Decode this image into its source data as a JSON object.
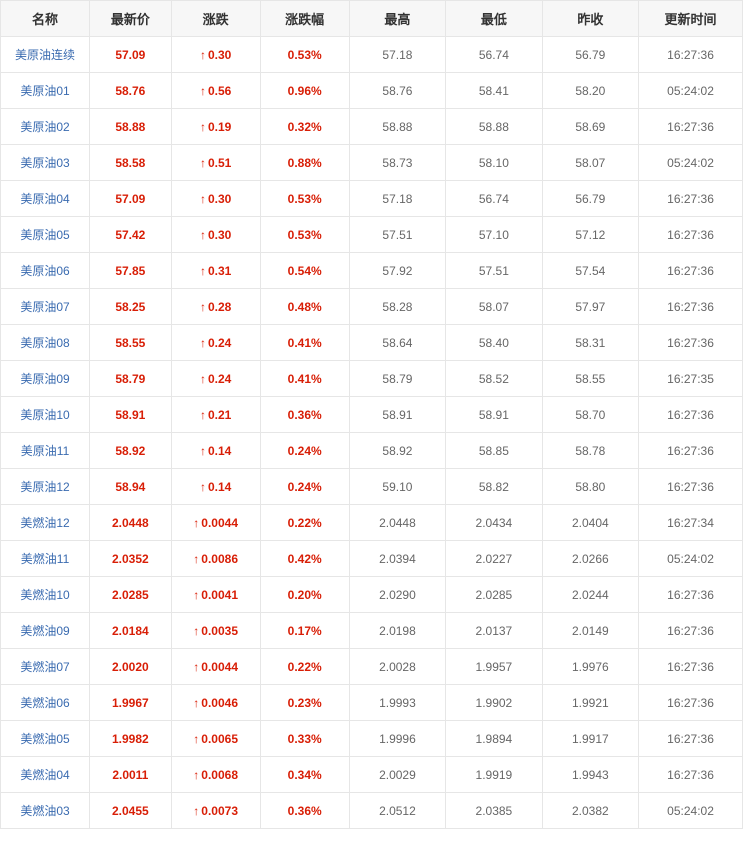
{
  "table": {
    "columns": [
      {
        "key": "name",
        "label": "名称"
      },
      {
        "key": "price",
        "label": "最新价"
      },
      {
        "key": "change",
        "label": "涨跌"
      },
      {
        "key": "pct",
        "label": "涨跌幅"
      },
      {
        "key": "high",
        "label": "最高"
      },
      {
        "key": "low",
        "label": "最低"
      },
      {
        "key": "prev",
        "label": "昨收"
      },
      {
        "key": "time",
        "label": "更新时间"
      }
    ],
    "up_arrow": "↑",
    "colors": {
      "header_bg": "#f7f7f7",
      "header_text": "#333333",
      "border": "#e6e6e6",
      "link": "#3a6bb0",
      "up": "#d81e06",
      "text": "#666666",
      "bg": "#ffffff"
    },
    "rows": [
      {
        "name": "美原油连续",
        "price": "57.09",
        "change": "0.30",
        "pct": "0.53%",
        "high": "57.18",
        "low": "56.74",
        "prev": "56.79",
        "time": "16:27:36",
        "dir": "up"
      },
      {
        "name": "美原油01",
        "price": "58.76",
        "change": "0.56",
        "pct": "0.96%",
        "high": "58.76",
        "low": "58.41",
        "prev": "58.20",
        "time": "05:24:02",
        "dir": "up"
      },
      {
        "name": "美原油02",
        "price": "58.88",
        "change": "0.19",
        "pct": "0.32%",
        "high": "58.88",
        "low": "58.88",
        "prev": "58.69",
        "time": "16:27:36",
        "dir": "up"
      },
      {
        "name": "美原油03",
        "price": "58.58",
        "change": "0.51",
        "pct": "0.88%",
        "high": "58.73",
        "low": "58.10",
        "prev": "58.07",
        "time": "05:24:02",
        "dir": "up"
      },
      {
        "name": "美原油04",
        "price": "57.09",
        "change": "0.30",
        "pct": "0.53%",
        "high": "57.18",
        "low": "56.74",
        "prev": "56.79",
        "time": "16:27:36",
        "dir": "up"
      },
      {
        "name": "美原油05",
        "price": "57.42",
        "change": "0.30",
        "pct": "0.53%",
        "high": "57.51",
        "low": "57.10",
        "prev": "57.12",
        "time": "16:27:36",
        "dir": "up"
      },
      {
        "name": "美原油06",
        "price": "57.85",
        "change": "0.31",
        "pct": "0.54%",
        "high": "57.92",
        "low": "57.51",
        "prev": "57.54",
        "time": "16:27:36",
        "dir": "up"
      },
      {
        "name": "美原油07",
        "price": "58.25",
        "change": "0.28",
        "pct": "0.48%",
        "high": "58.28",
        "low": "58.07",
        "prev": "57.97",
        "time": "16:27:36",
        "dir": "up"
      },
      {
        "name": "美原油08",
        "price": "58.55",
        "change": "0.24",
        "pct": "0.41%",
        "high": "58.64",
        "low": "58.40",
        "prev": "58.31",
        "time": "16:27:36",
        "dir": "up"
      },
      {
        "name": "美原油09",
        "price": "58.79",
        "change": "0.24",
        "pct": "0.41%",
        "high": "58.79",
        "low": "58.52",
        "prev": "58.55",
        "time": "16:27:35",
        "dir": "up"
      },
      {
        "name": "美原油10",
        "price": "58.91",
        "change": "0.21",
        "pct": "0.36%",
        "high": "58.91",
        "low": "58.91",
        "prev": "58.70",
        "time": "16:27:36",
        "dir": "up"
      },
      {
        "name": "美原油11",
        "price": "58.92",
        "change": "0.14",
        "pct": "0.24%",
        "high": "58.92",
        "low": "58.85",
        "prev": "58.78",
        "time": "16:27:36",
        "dir": "up"
      },
      {
        "name": "美原油12",
        "price": "58.94",
        "change": "0.14",
        "pct": "0.24%",
        "high": "59.10",
        "low": "58.82",
        "prev": "58.80",
        "time": "16:27:36",
        "dir": "up"
      },
      {
        "name": "美燃油12",
        "price": "2.0448",
        "change": "0.0044",
        "pct": "0.22%",
        "high": "2.0448",
        "low": "2.0434",
        "prev": "2.0404",
        "time": "16:27:34",
        "dir": "up"
      },
      {
        "name": "美燃油11",
        "price": "2.0352",
        "change": "0.0086",
        "pct": "0.42%",
        "high": "2.0394",
        "low": "2.0227",
        "prev": "2.0266",
        "time": "05:24:02",
        "dir": "up"
      },
      {
        "name": "美燃油10",
        "price": "2.0285",
        "change": "0.0041",
        "pct": "0.20%",
        "high": "2.0290",
        "low": "2.0285",
        "prev": "2.0244",
        "time": "16:27:36",
        "dir": "up"
      },
      {
        "name": "美燃油09",
        "price": "2.0184",
        "change": "0.0035",
        "pct": "0.17%",
        "high": "2.0198",
        "low": "2.0137",
        "prev": "2.0149",
        "time": "16:27:36",
        "dir": "up"
      },
      {
        "name": "美燃油07",
        "price": "2.0020",
        "change": "0.0044",
        "pct": "0.22%",
        "high": "2.0028",
        "low": "1.9957",
        "prev": "1.9976",
        "time": "16:27:36",
        "dir": "up"
      },
      {
        "name": "美燃油06",
        "price": "1.9967",
        "change": "0.0046",
        "pct": "0.23%",
        "high": "1.9993",
        "low": "1.9902",
        "prev": "1.9921",
        "time": "16:27:36",
        "dir": "up"
      },
      {
        "name": "美燃油05",
        "price": "1.9982",
        "change": "0.0065",
        "pct": "0.33%",
        "high": "1.9996",
        "low": "1.9894",
        "prev": "1.9917",
        "time": "16:27:36",
        "dir": "up"
      },
      {
        "name": "美燃油04",
        "price": "2.0011",
        "change": "0.0068",
        "pct": "0.34%",
        "high": "2.0029",
        "low": "1.9919",
        "prev": "1.9943",
        "time": "16:27:36",
        "dir": "up"
      },
      {
        "name": "美燃油03",
        "price": "2.0455",
        "change": "0.0073",
        "pct": "0.36%",
        "high": "2.0512",
        "low": "2.0385",
        "prev": "2.0382",
        "time": "05:24:02",
        "dir": "up"
      }
    ]
  }
}
